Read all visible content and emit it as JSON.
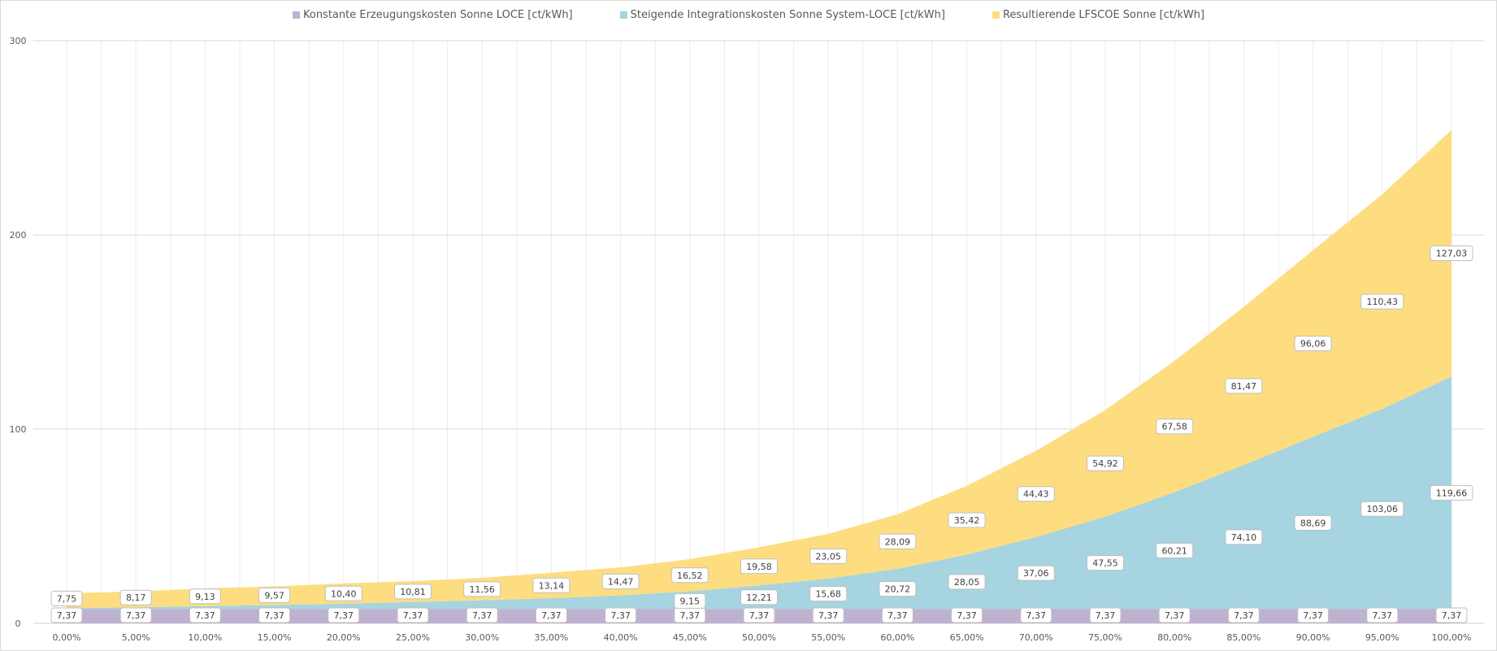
{
  "chart_data": {
    "type": "area",
    "stacked": true,
    "title": "",
    "xlabel": "",
    "ylabel": "",
    "ylim": [
      0,
      300
    ],
    "yticks": [
      "0",
      "100",
      "200",
      "300"
    ],
    "grid": true,
    "legend_position": "top",
    "categories": [
      "0,00%",
      "5,00%",
      "10,00%",
      "15,00%",
      "20,00%",
      "25,00%",
      "30,00%",
      "35,00%",
      "40,00%",
      "45,00%",
      "50,00%",
      "55,00%",
      "60,00%",
      "65,00%",
      "70,00%",
      "75,00%",
      "80,00%",
      "85,00%",
      "90,00%",
      "95,00%",
      "100,00%"
    ],
    "series": [
      {
        "name": "Konstante Erzeugungskosten Sonne LOCE [ct/kWh]",
        "color": "#bfb1d0",
        "values": [
          7.37,
          7.37,
          7.37,
          7.37,
          7.37,
          7.37,
          7.37,
          7.37,
          7.37,
          7.37,
          7.37,
          7.37,
          7.37,
          7.37,
          7.37,
          7.37,
          7.37,
          7.37,
          7.37,
          7.37,
          7.37
        ],
        "labels": [
          "7,37",
          "7,37",
          "7,37",
          "7,37",
          "7,37",
          "7,37",
          "7,37",
          "7,37",
          "7,37",
          "7,37",
          "7,37",
          "7,37",
          "7,37",
          "7,37",
          "7,37",
          "7,37",
          "7,37",
          "7,37",
          "7,37",
          "7,37",
          "7,37"
        ]
      },
      {
        "name": "Steigende Integrationskosten Sonne System-LOCE [ct/kWh]",
        "color": "#a6d4e0",
        "values": [
          0.4,
          0.9,
          1.5,
          2.1,
          2.8,
          3.6,
          4.5,
          5.6,
          7.0,
          9.15,
          12.21,
          15.68,
          20.72,
          28.05,
          37.06,
          47.55,
          60.21,
          74.1,
          88.69,
          103.06,
          119.66
        ],
        "labels": [
          null,
          null,
          null,
          null,
          null,
          null,
          null,
          null,
          null,
          "9,15",
          "12,21",
          "15,68",
          "20,72",
          "28,05",
          "37,06",
          "47,55",
          "60,21",
          "74,10",
          "88,69",
          "103,06",
          "119,66"
        ]
      },
      {
        "name": "Resultierende LFSCOE Sonne [ct/kWh]",
        "color": "#fddd80",
        "values": [
          7.75,
          8.17,
          9.13,
          9.57,
          10.4,
          10.81,
          11.56,
          13.14,
          14.47,
          16.52,
          19.58,
          23.05,
          28.09,
          35.42,
          44.43,
          54.92,
          67.58,
          81.47,
          96.06,
          110.43,
          127.03
        ],
        "labels": [
          "7,75",
          "8,17",
          "9,13",
          "9,57",
          "10,40",
          "10,81",
          "11,56",
          "13,14",
          "14,47",
          "16,52",
          "19,58",
          "23,05",
          "28,09",
          "35,42",
          "44,43",
          "54,92",
          "67,58",
          "81,47",
          "96,06",
          "110,43",
          "127,03"
        ]
      }
    ]
  }
}
